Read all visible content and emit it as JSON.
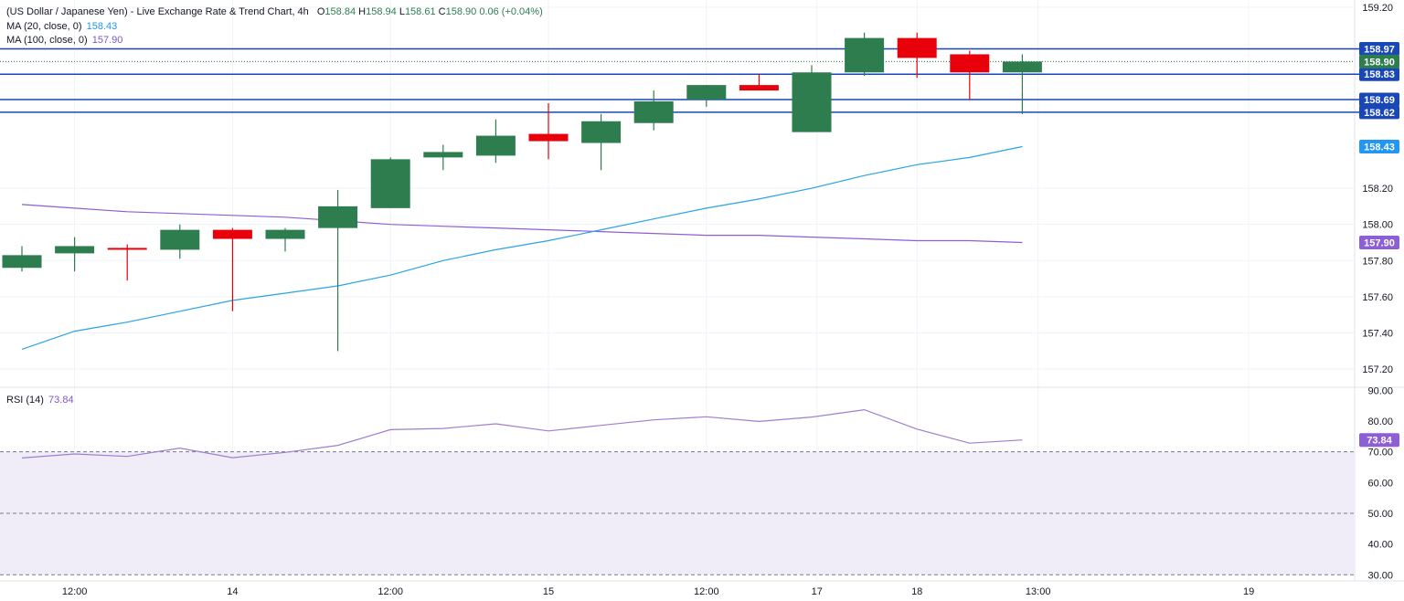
{
  "header": {
    "title": "(US Dollar / Japanese Yen) - Live Exchange Rate & Trend Chart, 4h",
    "ohlc": {
      "o_label": "O",
      "o": "158.84",
      "h_label": "H",
      "h": "158.94",
      "l_label": "L",
      "l": "158.61",
      "c_label": "C",
      "c": "158.90",
      "change": "0.06 (+0.04%)"
    },
    "ma20_label": "MA (20, close, 0)",
    "ma20_value": "158.43",
    "ma100_label": "MA (100, close, 0)",
    "ma100_value": "157.90",
    "rsi_label": "RSI (14)",
    "rsi_value": "73.84"
  },
  "colors": {
    "up": "#2e7d4f",
    "down": "#e8000b",
    "ma20": "#29a3e6",
    "ma100": "#8e5ed6",
    "level": "#1a47b8",
    "rsi": "#9c7fd0",
    "rsi_band": "#f0edf8"
  },
  "chart_data": [
    {
      "type": "candlestick",
      "title": "(US Dollar / Japanese Yen) - Live Exchange Rate & Trend Chart, 4h",
      "ylim": [
        157.1,
        159.24
      ],
      "y_ticks": [
        "159.20",
        "158.20",
        "158.00",
        "157.80",
        "157.60",
        "157.40",
        "157.20"
      ],
      "x_ticks": [
        {
          "label": "12:00",
          "pos": 1
        },
        {
          "label": "14",
          "pos": 4
        },
        {
          "label": "12:00",
          "pos": 7
        },
        {
          "label": "15",
          "pos": 10
        },
        {
          "label": "12:00",
          "pos": 13
        },
        {
          "label": "17",
          "pos": 15.1
        },
        {
          "label": "18",
          "pos": 17
        },
        {
          "label": "13:00",
          "pos": 19.3
        },
        {
          "label": "19",
          "pos": 23.3
        }
      ],
      "candles": [
        {
          "o": 157.76,
          "h": 157.88,
          "l": 157.74,
          "c": 157.83
        },
        {
          "o": 157.84,
          "h": 157.93,
          "l": 157.74,
          "c": 157.88
        },
        {
          "o": 157.87,
          "h": 157.89,
          "l": 157.69,
          "c": 157.86
        },
        {
          "o": 157.86,
          "h": 158.0,
          "l": 157.81,
          "c": 157.97
        },
        {
          "o": 157.97,
          "h": 157.98,
          "l": 157.52,
          "c": 157.92
        },
        {
          "o": 157.92,
          "h": 157.98,
          "l": 157.85,
          "c": 157.97
        },
        {
          "o": 157.98,
          "h": 158.19,
          "l": 157.3,
          "c": 158.1
        },
        {
          "o": 158.09,
          "h": 158.37,
          "l": 158.09,
          "c": 158.36
        },
        {
          "o": 158.37,
          "h": 158.44,
          "l": 158.3,
          "c": 158.4
        },
        {
          "o": 158.38,
          "h": 158.58,
          "l": 158.34,
          "c": 158.49
        },
        {
          "o": 158.5,
          "h": 158.67,
          "l": 158.36,
          "c": 158.46
        },
        {
          "o": 158.45,
          "h": 158.61,
          "l": 158.3,
          "c": 158.57
        },
        {
          "o": 158.56,
          "h": 158.74,
          "l": 158.52,
          "c": 158.68
        },
        {
          "o": 158.69,
          "h": 158.77,
          "l": 158.65,
          "c": 158.77
        },
        {
          "o": 158.77,
          "h": 158.83,
          "l": 158.74,
          "c": 158.74
        },
        {
          "o": 158.51,
          "h": 158.88,
          "l": 158.51,
          "c": 158.84
        },
        {
          "o": 158.84,
          "h": 159.06,
          "l": 158.82,
          "c": 159.03
        },
        {
          "o": 159.03,
          "h": 159.06,
          "l": 158.81,
          "c": 158.92
        },
        {
          "o": 158.94,
          "h": 158.96,
          "l": 158.69,
          "c": 158.84
        },
        {
          "o": 158.84,
          "h": 158.94,
          "l": 158.61,
          "c": 158.9
        }
      ],
      "ma20": [
        157.31,
        157.41,
        157.46,
        157.52,
        157.58,
        157.62,
        157.66,
        157.72,
        157.8,
        157.86,
        157.91,
        157.97,
        158.03,
        158.09,
        158.14,
        158.2,
        158.27,
        158.33,
        158.37,
        158.43
      ],
      "ma100": [
        158.11,
        158.09,
        158.07,
        158.06,
        158.05,
        158.04,
        158.02,
        158.0,
        157.99,
        157.98,
        157.97,
        157.96,
        157.95,
        157.94,
        157.94,
        157.93,
        157.92,
        157.91,
        157.91,
        157.9
      ],
      "levels": [
        {
          "value": 158.97,
          "label": "158.97"
        },
        {
          "value": 158.83,
          "label": "158.83"
        },
        {
          "value": 158.69,
          "label": "158.69"
        },
        {
          "value": 158.62,
          "label": "158.62"
        }
      ],
      "price_tags": [
        {
          "value": 158.9,
          "label": "158.90",
          "kind": "last"
        },
        {
          "value": 158.43,
          "label": "158.43",
          "kind": "ma20"
        },
        {
          "value": 157.9,
          "label": "157.90",
          "kind": "ma100"
        }
      ]
    },
    {
      "type": "line",
      "title": "RSI (14)",
      "ylim": [
        28,
        91
      ],
      "y_ticks": [
        "90.00",
        "80.00",
        "70.00",
        "60.00",
        "50.00",
        "40.00",
        "30.00"
      ],
      "band": [
        30,
        70
      ],
      "dashed_levels": [
        70,
        50,
        30
      ],
      "series": [
        {
          "name": "RSI (14)",
          "values": [
            68.0,
            69.3,
            68.5,
            71.2,
            68.1,
            69.8,
            72.1,
            77.2,
            77.6,
            79.1,
            76.8,
            78.6,
            80.4,
            81.4,
            79.9,
            81.3,
            83.7,
            77.4,
            72.8,
            73.84
          ]
        }
      ],
      "last_label": "73.84"
    }
  ]
}
